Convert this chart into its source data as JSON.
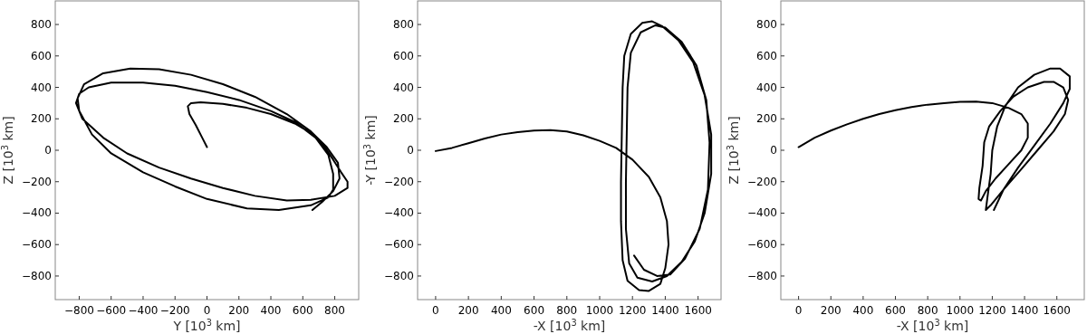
{
  "chart_data": [
    {
      "type": "line",
      "xlabel": "Y [10$^{3}$ km]",
      "ylabel": "Z [10$^{3}$ km]",
      "xlim": [
        -950,
        950
      ],
      "ylim": [
        -950,
        950
      ],
      "xticks": [
        -800,
        -600,
        -400,
        -200,
        0,
        200,
        400,
        600,
        800
      ],
      "yticks": [
        -800,
        -600,
        -400,
        -200,
        0,
        200,
        400,
        600,
        800
      ],
      "series": [
        {
          "color": "#000000",
          "x": [
            0,
            -30,
            -70,
            -110,
            -120,
            -100,
            -40,
            100,
            250,
            400,
            550,
            650,
            730,
            790,
            840,
            880,
            880,
            800,
            650,
            500,
            300,
            100,
            -100,
            -300,
            -500,
            -650,
            -780,
            -820,
            -800,
            -740,
            -600,
            -400,
            -200,
            0,
            200,
            400,
            550,
            680,
            760,
            790,
            790,
            760,
            650,
            450,
            250,
            0,
            -200,
            -400,
            -600,
            -720,
            -800,
            -810,
            -770,
            -650,
            -480,
            -300,
            -100,
            100,
            300,
            500,
            650,
            750,
            820,
            830,
            790,
            720,
            660
          ],
          "values": [
            20,
            80,
            160,
            230,
            280,
            300,
            305,
            295,
            270,
            230,
            170,
            110,
            30,
            -60,
            -140,
            -200,
            -240,
            -290,
            -315,
            -320,
            -290,
            -240,
            -180,
            -110,
            -20,
            80,
            200,
            300,
            360,
            400,
            430,
            430,
            410,
            370,
            320,
            250,
            180,
            80,
            -30,
            -150,
            -250,
            -300,
            -350,
            -380,
            -370,
            -310,
            -230,
            -140,
            -20,
            100,
            250,
            330,
            420,
            490,
            520,
            515,
            480,
            420,
            340,
            230,
            120,
            20,
            -80,
            -180,
            -260,
            -330,
            -380
          ]
        }
      ]
    },
    {
      "type": "line",
      "xlabel": "-X [10$^{3}$ km]",
      "ylabel": "-Y [10$^{3}$ km]",
      "xlim": [
        -110,
        1740
      ],
      "ylim": [
        -950,
        950
      ],
      "xticks": [
        0,
        200,
        400,
        600,
        800,
        1000,
        1200,
        1400,
        1600
      ],
      "yticks": [
        -800,
        -600,
        -400,
        -200,
        0,
        200,
        400,
        600,
        800
      ],
      "series": [
        {
          "color": "#000000",
          "x": [
            0,
            100,
            200,
            300,
            400,
            500,
            600,
            700,
            800,
            900,
            1000,
            1100,
            1200,
            1300,
            1370,
            1410,
            1420,
            1400,
            1370,
            1300,
            1240,
            1170,
            1140,
            1130,
            1130,
            1135,
            1140,
            1150,
            1190,
            1260,
            1320,
            1380,
            1480,
            1570,
            1640,
            1680,
            1680,
            1640,
            1580,
            1500,
            1410,
            1320,
            1230,
            1180,
            1160,
            1160,
            1165,
            1170,
            1190,
            1250,
            1340,
            1400,
            1500,
            1590,
            1650,
            1670,
            1660,
            1610,
            1520,
            1430,
            1350,
            1270,
            1210
          ],
          "values": [
            -5,
            15,
            45,
            75,
            100,
            115,
            125,
            128,
            120,
            95,
            60,
            15,
            -60,
            -170,
            -300,
            -450,
            -600,
            -750,
            -850,
            -895,
            -890,
            -830,
            -700,
            -450,
            -200,
            100,
            400,
            600,
            740,
            810,
            820,
            790,
            700,
            560,
            350,
            100,
            -150,
            -400,
            -580,
            -710,
            -800,
            -835,
            -810,
            -720,
            -500,
            -200,
            100,
            400,
            620,
            750,
            795,
            780,
            690,
            540,
            320,
            50,
            -250,
            -500,
            -690,
            -790,
            -800,
            -760,
            -670
          ]
        }
      ]
    },
    {
      "type": "line",
      "xlabel": "-X [10$^{3}$ km]",
      "ylabel": "Z [10$^{3}$ km]",
      "xlim": [
        -110,
        1770
      ],
      "ylim": [
        -950,
        950
      ],
      "xticks": [
        0,
        200,
        400,
        600,
        800,
        1000,
        1200,
        1400,
        1600
      ],
      "yticks": [
        -800,
        -600,
        -400,
        -200,
        0,
        200,
        400,
        600,
        800
      ],
      "series": [
        {
          "color": "#000000",
          "x": [
            0,
            100,
            200,
            300,
            400,
            500,
            600,
            700,
            800,
            900,
            1000,
            1100,
            1200,
            1300,
            1380,
            1420,
            1420,
            1380,
            1300,
            1220,
            1160,
            1130,
            1115,
            1120,
            1140,
            1150,
            1180,
            1250,
            1330,
            1420,
            1520,
            1580,
            1640,
            1670,
            1650,
            1580,
            1480,
            1380,
            1270,
            1190,
            1160,
            1170,
            1190,
            1200,
            1230,
            1280,
            1360,
            1460,
            1560,
            1620,
            1680,
            1680,
            1640,
            1560,
            1460,
            1360,
            1270,
            1210
          ],
          "values": [
            20,
            80,
            125,
            165,
            200,
            230,
            255,
            275,
            290,
            300,
            308,
            310,
            300,
            270,
            230,
            170,
            80,
            0,
            -90,
            -180,
            -260,
            -320,
            -310,
            -240,
            -100,
            50,
            150,
            250,
            340,
            400,
            435,
            435,
            400,
            320,
            230,
            120,
            0,
            -120,
            -250,
            -350,
            -380,
            -300,
            -150,
            0,
            150,
            280,
            400,
            480,
            520,
            520,
            470,
            390,
            300,
            170,
            30,
            -110,
            -250,
            -380
          ]
        }
      ]
    }
  ]
}
